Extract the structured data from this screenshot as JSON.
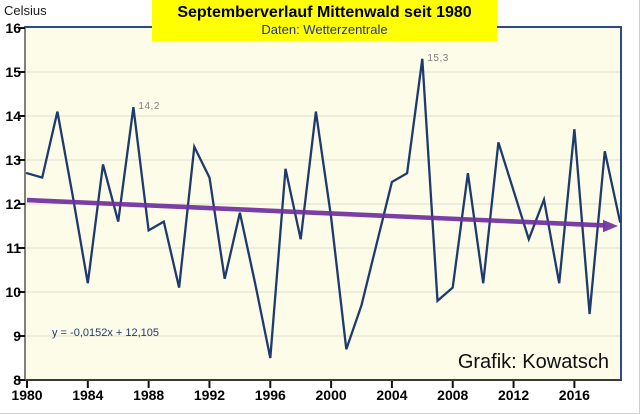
{
  "title_box": {
    "title": "Septemberverlauf Mittenwald seit 1980",
    "subtitle": "Daten: Wetterzentrale"
  },
  "y_axis_unit": "Celsius",
  "credit": "Grafik: Kowatsch",
  "trend_equation": "y = -0,0152x + 12,105",
  "colors": {
    "title_bg": "#ffff00",
    "title_text": "#000000",
    "subtitle_text": "#1f2f9c",
    "series_line": "#1e3a6e",
    "trend_line": "#7030a0",
    "plot_bg": "#fcfce8",
    "gridline": "#dedecf",
    "frame_blue": "#2b4a8b",
    "axis_gray": "#808080",
    "tick_black": "#111111",
    "annotation_text": "#7f7f7f",
    "equation_text": "#203a70"
  },
  "chart_data": {
    "type": "line",
    "title": "Septemberverlauf Mittenwald seit 1980",
    "subtitle": "Daten: Wetterzentrale",
    "xlabel": "",
    "ylabel": "Celsius",
    "ylim": [
      8,
      16
    ],
    "yticks": [
      8,
      9,
      10,
      11,
      12,
      13,
      14,
      15,
      16
    ],
    "xticks": [
      1980,
      1984,
      1988,
      1992,
      1996,
      2000,
      2004,
      2008,
      2012,
      2016
    ],
    "grid": "horizontal",
    "legend": "none",
    "x": [
      1980,
      1981,
      1982,
      1983,
      1984,
      1985,
      1986,
      1987,
      1988,
      1989,
      1990,
      1991,
      1992,
      1993,
      1994,
      1995,
      1996,
      1997,
      1998,
      1999,
      2000,
      2001,
      2002,
      2003,
      2004,
      2005,
      2006,
      2007,
      2008,
      2009,
      2010,
      2011,
      2012,
      2013,
      2014,
      2015,
      2016,
      2017,
      2018,
      2019
    ],
    "values": [
      12.7,
      12.6,
      14.1,
      12.2,
      10.2,
      12.9,
      11.6,
      14.2,
      11.4,
      11.6,
      10.1,
      13.3,
      12.6,
      10.3,
      11.8,
      10.2,
      8.5,
      12.8,
      11.2,
      14.1,
      11.7,
      8.7,
      9.7,
      11.1,
      12.5,
      12.7,
      15.3,
      9.8,
      10.1,
      12.7,
      10.2,
      13.4,
      12.3,
      11.2,
      12.1,
      10.2,
      13.7,
      9.5,
      13.2,
      11.6
    ],
    "trend": {
      "equation": "y = -0,0152x + 12,105",
      "slope": -0.0152,
      "intercept": 12.105,
      "x_index_start": 1,
      "style": "thick purple arrow"
    },
    "annotations": [
      {
        "text": "14,2",
        "year": 1987,
        "value": 14.2
      },
      {
        "text": "15,3",
        "year": 2006,
        "value": 15.3
      }
    ]
  }
}
